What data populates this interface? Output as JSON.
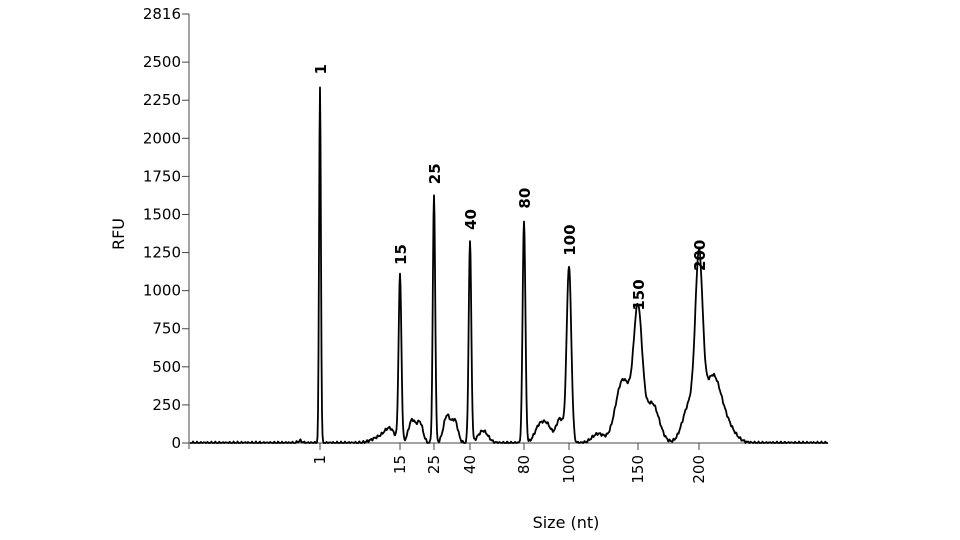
{
  "chart_data": {
    "type": "line",
    "title": "",
    "xlabel": "Size (nt)",
    "ylabel": "RFU",
    "ylim": [
      0,
      2816
    ],
    "grid": false,
    "legend": "none",
    "line_color": "#000000",
    "y_ticks": [
      0,
      250,
      500,
      750,
      1000,
      1250,
      1500,
      1750,
      2000,
      2250,
      2500,
      2816
    ],
    "x_ticks": [
      "1",
      "15",
      "25",
      "40",
      "80",
      "100",
      "150",
      "200"
    ],
    "peaks": [
      {
        "label": "1",
        "height": 2340,
        "width": 0.9
      },
      {
        "label": "15",
        "height": 1090,
        "width": 1.4
      },
      {
        "label": "25",
        "height": 1620,
        "width": 1.2
      },
      {
        "label": "40",
        "height": 1320,
        "width": 1.3
      },
      {
        "label": "80",
        "height": 1460,
        "width": 1.4
      },
      {
        "label": "100",
        "height": 1150,
        "width": 2.3
      },
      {
        "label": "150",
        "height": 790,
        "width": 4.2
      },
      {
        "label": "200",
        "height": 1050,
        "width": 3.6
      }
    ]
  }
}
